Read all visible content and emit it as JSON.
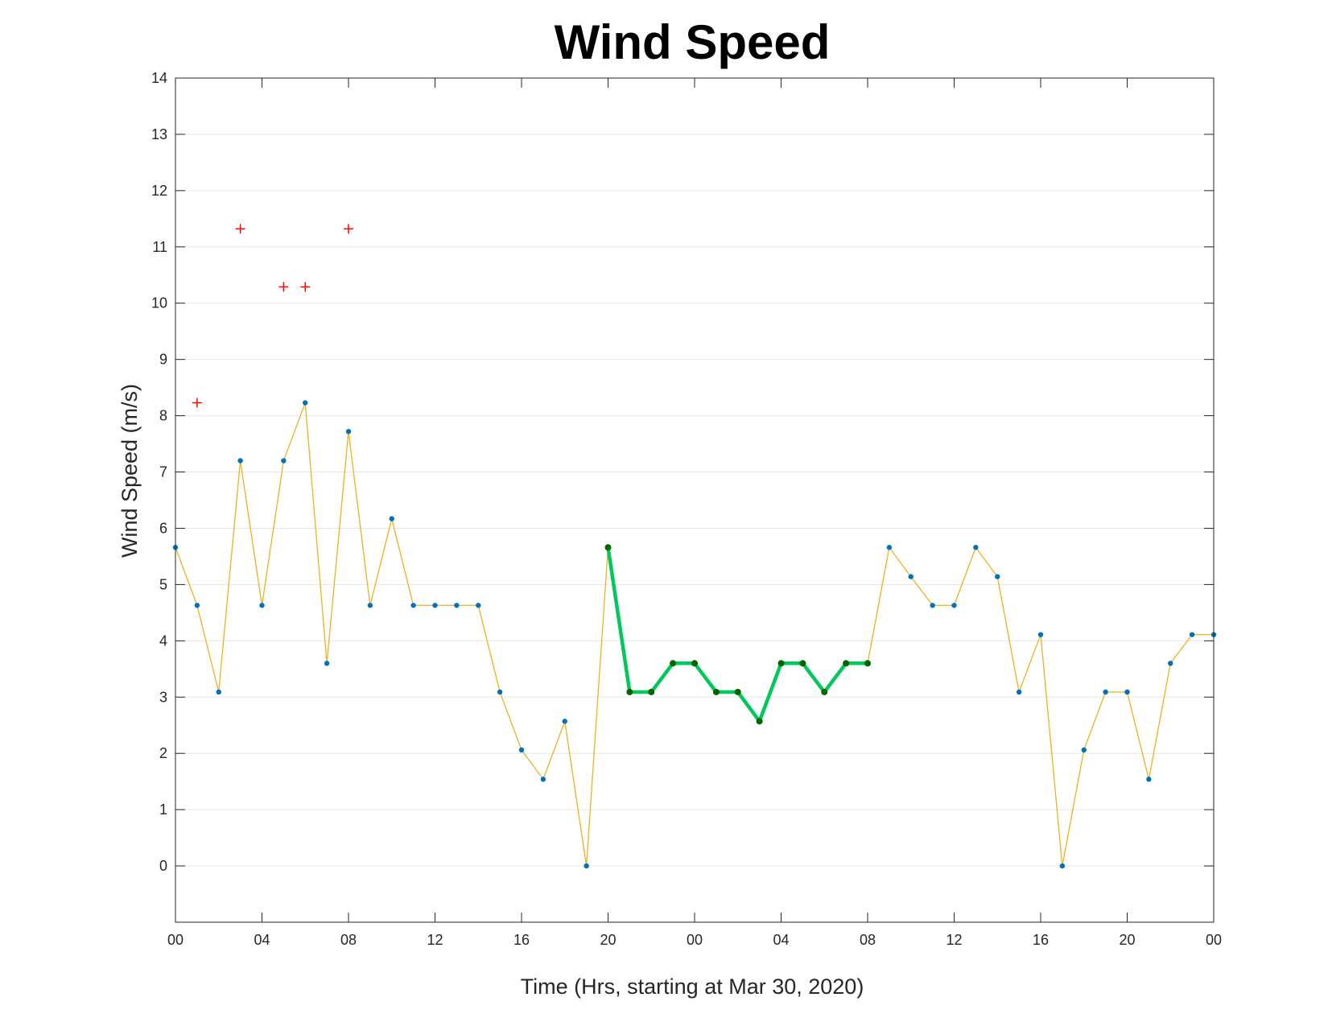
{
  "chart_data": {
    "type": "line",
    "title": "Wind Speed",
    "xlabel": "Time (Hrs, starting at Mar 30, 2020)",
    "ylabel": "Wind Speed (m/s)",
    "ylim": [
      -1,
      14
    ],
    "xlim": [
      0,
      48
    ],
    "grid": "horizontal",
    "y_ticks": [
      "0",
      "1",
      "2",
      "3",
      "4",
      "5",
      "6",
      "7",
      "8",
      "9",
      "10",
      "11",
      "12",
      "13",
      "14"
    ],
    "x_ticks": [
      {
        "x": 0,
        "label": "00"
      },
      {
        "x": 4,
        "label": "04"
      },
      {
        "x": 8,
        "label": "08"
      },
      {
        "x": 12,
        "label": "12"
      },
      {
        "x": 16,
        "label": "16"
      },
      {
        "x": 20,
        "label": "20"
      },
      {
        "x": 24,
        "label": "00"
      },
      {
        "x": 28,
        "label": "04"
      },
      {
        "x": 32,
        "label": "08"
      },
      {
        "x": 36,
        "label": "12"
      },
      {
        "x": 40,
        "label": "16"
      },
      {
        "x": 44,
        "label": "20"
      },
      {
        "x": 48,
        "label": "00"
      }
    ],
    "x": [
      0,
      1,
      2,
      3,
      4,
      5,
      6,
      7,
      8,
      9,
      10,
      11,
      12,
      13,
      14,
      15,
      16,
      17,
      18,
      19,
      20,
      21,
      22,
      23,
      24,
      25,
      26,
      27,
      28,
      29,
      30,
      31,
      32,
      33,
      34,
      35,
      36,
      37,
      38,
      39,
      40,
      41,
      42,
      43,
      44,
      45,
      46,
      47,
      48
    ],
    "series": [
      {
        "role": "all",
        "color": "#EDB120",
        "marker_color": "#0072BD",
        "values": [
          5.66,
          4.63,
          3.09,
          7.2,
          4.63,
          7.2,
          8.23,
          3.6,
          7.72,
          4.63,
          6.17,
          4.63,
          4.63,
          4.63,
          4.63,
          3.09,
          2.06,
          1.54,
          2.57,
          0,
          5.66,
          3.09,
          3.09,
          3.6,
          3.6,
          3.09,
          3.09,
          2.57,
          3.6,
          3.6,
          3.09,
          3.6,
          3.6,
          5.66,
          5.14,
          4.63,
          4.63,
          5.66,
          5.14,
          3.09,
          4.11,
          0,
          2.06,
          3.09,
          3.09,
          1.54,
          3.6,
          4.11,
          4.11
        ]
      },
      {
        "role": "highlight",
        "color": "#00C85A",
        "marker_color": "#006400",
        "x": [
          20,
          21,
          22,
          23,
          24,
          25,
          26,
          27,
          28,
          29,
          30,
          31,
          32
        ],
        "values": [
          5.66,
          3.09,
          3.09,
          3.6,
          3.6,
          3.09,
          3.09,
          2.57,
          3.6,
          3.6,
          3.09,
          3.6,
          3.6
        ]
      },
      {
        "role": "outliers",
        "marker": "+",
        "color": "#FF0000",
        "x": [
          1,
          3,
          5,
          6,
          8
        ],
        "values": [
          8.23,
          11.32,
          10.29,
          10.29,
          11.32
        ]
      }
    ]
  }
}
